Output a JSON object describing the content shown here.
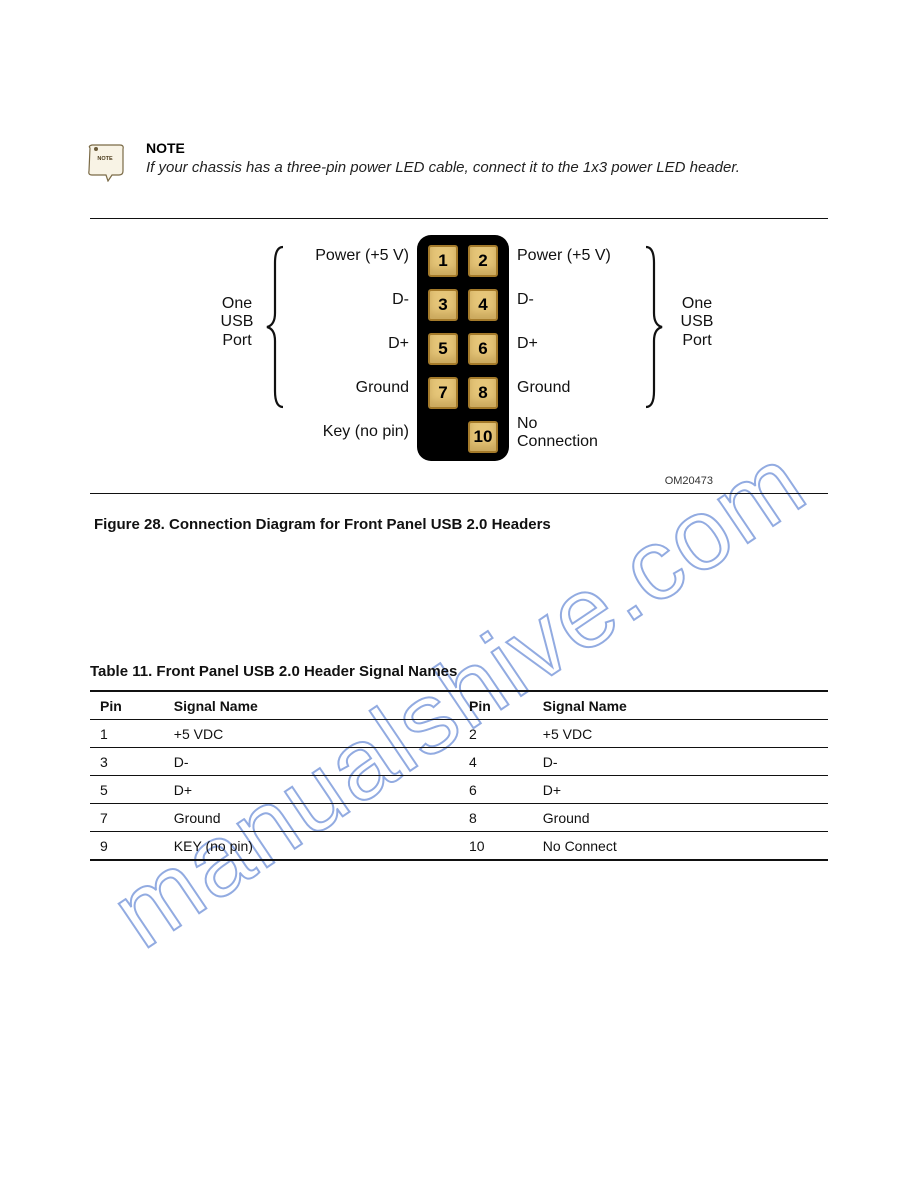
{
  "note": {
    "label": "NOTE",
    "text": "If your chassis has a three-pin power LED cable, connect it to the 1x3 power LED header."
  },
  "diagram": {
    "pin_bg": "#e6c679",
    "pin_border": "#a47a2a",
    "body_bg": "#000000",
    "left_bracket_label": "One\nUSB\nPort",
    "right_bracket_label": "One\nUSB\nPort",
    "rows": [
      {
        "left": "Power (+5 V)",
        "pins": [
          "1",
          "2"
        ],
        "right": "Power (+5 V)"
      },
      {
        "left": "D-",
        "pins": [
          "3",
          "4"
        ],
        "right": "D-"
      },
      {
        "left": "D+",
        "pins": [
          "5",
          "6"
        ],
        "right": "D+"
      },
      {
        "left": "Ground",
        "pins": [
          "7",
          "8"
        ],
        "right": "Ground"
      },
      {
        "left": "Key (no pin)",
        "pins": [
          "",
          "10"
        ],
        "right": "No\nConnection"
      }
    ],
    "om_code": "OM20473"
  },
  "figure_caption": "Figure 28. Connection Diagram for Front Panel USB 2.0 Headers",
  "table": {
    "title": "Table 11. Front Panel USB 2.0 Header Signal Names",
    "columns": [
      "Pin",
      "Signal Name",
      "Pin",
      "Signal Name"
    ],
    "rows": [
      [
        "1",
        "+5 VDC",
        "2",
        "+5 VDC"
      ],
      [
        "3",
        "D-",
        "4",
        "D-"
      ],
      [
        "5",
        "D+",
        "6",
        "D+"
      ],
      [
        "7",
        "Ground",
        "8",
        "Ground"
      ],
      [
        "9",
        "KEY (no pin)",
        "10",
        "No Connect"
      ]
    ]
  },
  "watermark": "manualshive.com"
}
